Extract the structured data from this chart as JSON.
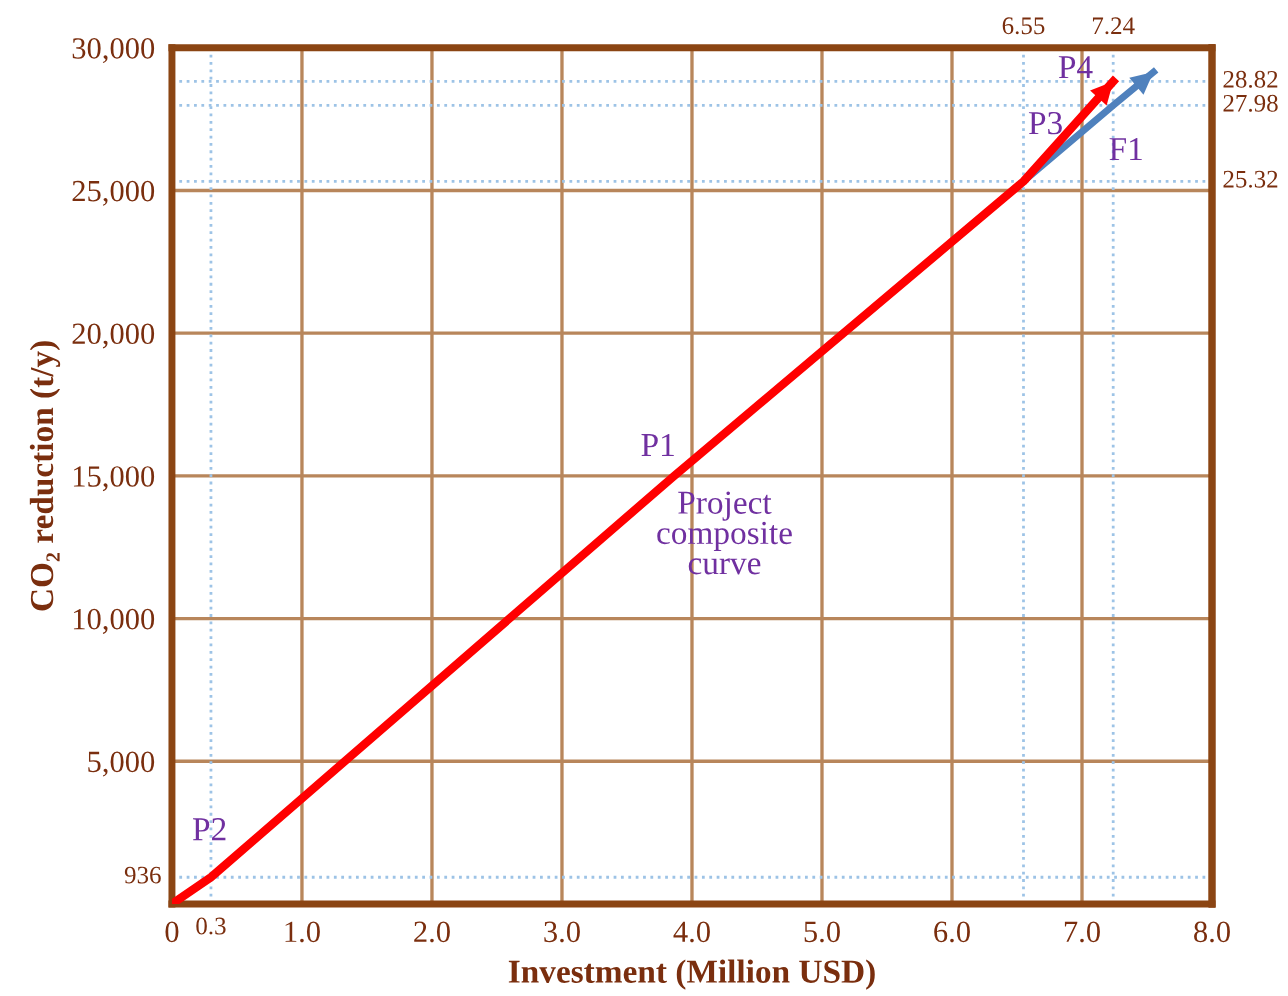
{
  "chart_data": {
    "type": "line",
    "xlabel": "Investment (Million USD)",
    "ylabel": "CO₂ reduction (t/y)",
    "xlim": [
      0,
      8.0
    ],
    "ylim": [
      0,
      30000
    ],
    "xticks": [
      {
        "value": 0,
        "label": "0"
      },
      {
        "value": 1,
        "label": "1.0"
      },
      {
        "value": 2,
        "label": "2.0"
      },
      {
        "value": 3,
        "label": "3.0"
      },
      {
        "value": 4,
        "label": "4.0"
      },
      {
        "value": 5,
        "label": "5.0"
      },
      {
        "value": 6,
        "label": "6.0"
      },
      {
        "value": 7,
        "label": "7.0"
      },
      {
        "value": 8,
        "label": "8.0"
      }
    ],
    "yticks": [
      {
        "value": 0,
        "label": null
      },
      {
        "value": 5000,
        "label": "5,000"
      },
      {
        "value": 10000,
        "label": "10,000"
      },
      {
        "value": 15000,
        "label": "15,000"
      },
      {
        "value": 20000,
        "label": "20,000"
      },
      {
        "value": 25000,
        "label": "25,000"
      },
      {
        "value": 30000,
        "label": "30,000"
      }
    ],
    "grid": true,
    "legend": false,
    "line_style": "solid",
    "marker": "none",
    "series": [
      {
        "color": "#ff0000",
        "x": [
          0,
          0.3,
          3.85,
          6.55,
          7.24
        ],
        "values": [
          0,
          936,
          14950,
          25320,
          28820
        ]
      },
      {
        "color": "#4f81bd",
        "x": [
          6.55,
          7.24,
          7.55
        ],
        "values": [
          25320,
          27980,
          29150
        ]
      }
    ],
    "ref_lines": [
      {
        "axis": "x",
        "value": 0.3,
        "label": "0.3",
        "color": "#9dc3e6",
        "line_style": "dotted"
      },
      {
        "axis": "x",
        "value": 6.55,
        "label": "6.55",
        "color": "#9dc3e6",
        "line_style": "dotted"
      },
      {
        "axis": "x",
        "value": 7.24,
        "label": "7.24",
        "color": "#9dc3e6",
        "line_style": "dotted"
      },
      {
        "axis": "y",
        "value": 936,
        "label": "936",
        "color": "#9dc3e6",
        "line_style": "dotted"
      },
      {
        "axis": "y2",
        "value": 25.32,
        "label": "25.32",
        "color": "#9dc3e6",
        "line_style": "dotted"
      },
      {
        "axis": "y2",
        "value": 27.98,
        "label": "27.98",
        "color": "#9dc3e6",
        "line_style": "dotted"
      },
      {
        "axis": "y2",
        "value": 28.82,
        "label": "28.82",
        "color": "#9dc3e6",
        "line_style": "dotted"
      }
    ],
    "y2lim": [
      0,
      30
    ],
    "annotations": [
      {
        "text": "P1",
        "x": 3.85,
        "y": 14950
      },
      {
        "text": "Project\ncomposite\ncurve",
        "x": 3.85,
        "y": 14950
      },
      {
        "text": "P2",
        "x": 0.3,
        "y": 936
      },
      {
        "text": "P3",
        "x": 6.55,
        "y": 25320
      },
      {
        "text": "P4",
        "x": 7.24,
        "y": 28820
      },
      {
        "text": "F1",
        "x": 7.24,
        "y": 27980
      }
    ]
  }
}
